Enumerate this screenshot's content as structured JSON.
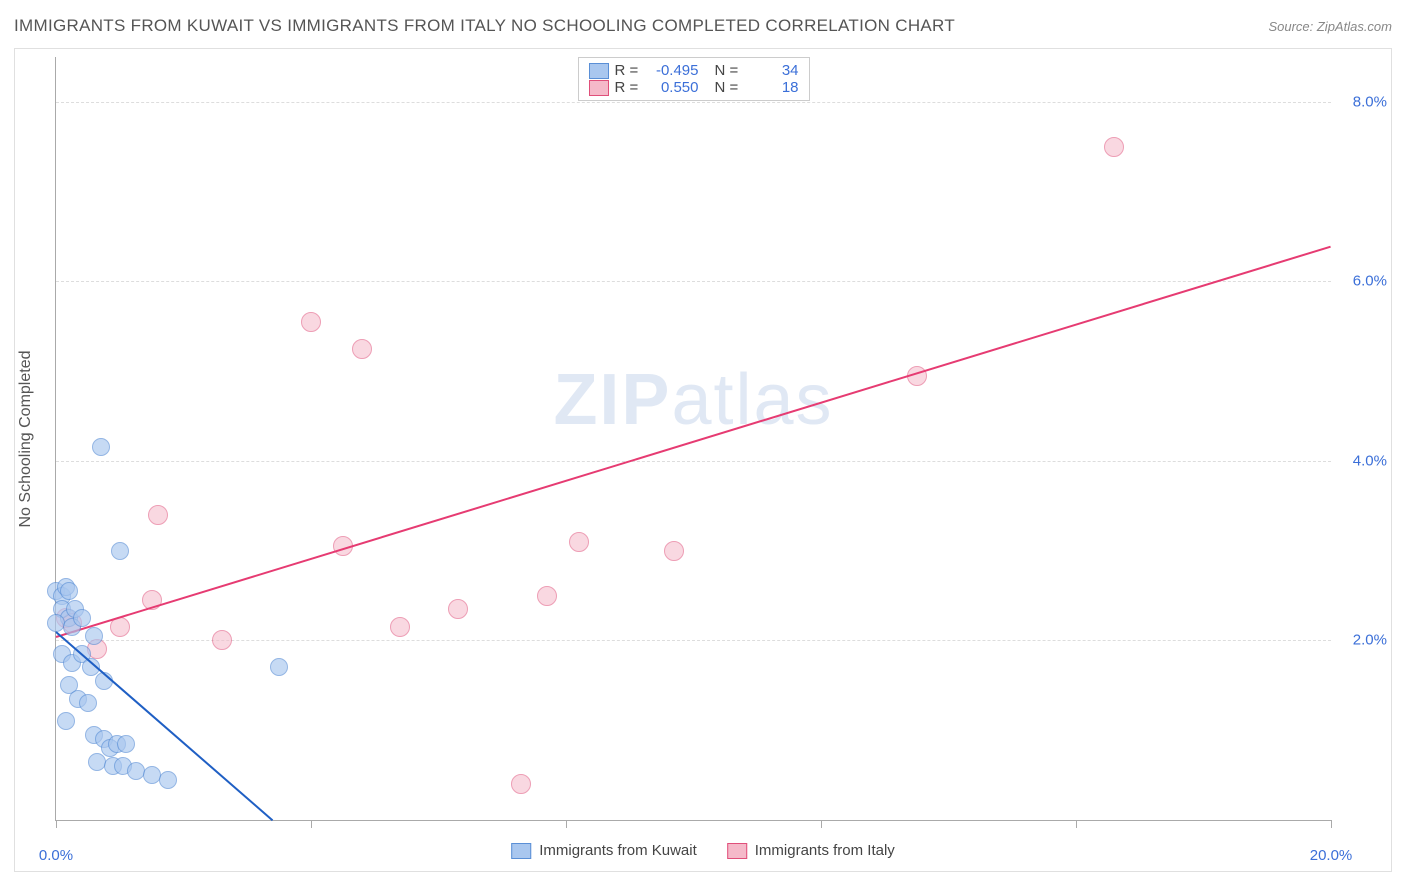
{
  "title": "IMMIGRANTS FROM KUWAIT VS IMMIGRANTS FROM ITALY NO SCHOOLING COMPLETED CORRELATION CHART",
  "source_prefix": "Source: ",
  "source_name": "ZipAtlas.com",
  "y_axis_label": "No Schooling Completed",
  "watermark_a": "ZIP",
  "watermark_b": "atlas",
  "chart": {
    "type": "scatter",
    "xlim": [
      0,
      20
    ],
    "ylim": [
      0,
      8.5
    ],
    "x_ticks": [
      0,
      4,
      8,
      12,
      16,
      20
    ],
    "x_tick_labels": {
      "0": "0.0%",
      "20": "20.0%"
    },
    "y_ticks": [
      2,
      4,
      6,
      8
    ],
    "y_tick_labels": {
      "2": "2.0%",
      "4": "4.0%",
      "6": "6.0%",
      "8": "8.0%"
    },
    "grid_color": "#dddddd",
    "axis_color": "#aaaaaa",
    "background_color": "#ffffff",
    "tick_label_color": "#3b6fd8",
    "axis_label_color": "#555555",
    "title_color": "#555555",
    "title_fontsize": 17,
    "label_fontsize": 16,
    "tick_fontsize": 15
  },
  "series": {
    "kuwait": {
      "label": "Immigrants from Kuwait",
      "fill": "#a9c7ef",
      "stroke": "#5a8fd6",
      "fill_opacity": 0.65,
      "marker_radius": 9,
      "trend_color": "#1f5fc4",
      "trend_width": 2,
      "R": "-0.495",
      "N": "34",
      "trend": {
        "x1": 0,
        "y1": 2.1,
        "x2": 3.4,
        "y2": 0
      },
      "points": [
        [
          0.0,
          2.55
        ],
        [
          0.1,
          2.5
        ],
        [
          0.15,
          2.6
        ],
        [
          0.2,
          2.55
        ],
        [
          0.1,
          2.35
        ],
        [
          0.2,
          2.25
        ],
        [
          0.3,
          2.35
        ],
        [
          0.0,
          2.2
        ],
        [
          0.25,
          2.15
        ],
        [
          0.4,
          2.25
        ],
        [
          0.6,
          2.05
        ],
        [
          0.1,
          1.85
        ],
        [
          0.25,
          1.75
        ],
        [
          0.4,
          1.85
        ],
        [
          0.55,
          1.7
        ],
        [
          0.75,
          1.55
        ],
        [
          0.2,
          1.5
        ],
        [
          0.35,
          1.35
        ],
        [
          0.5,
          1.3
        ],
        [
          0.15,
          1.1
        ],
        [
          0.6,
          0.95
        ],
        [
          0.75,
          0.9
        ],
        [
          0.85,
          0.8
        ],
        [
          0.95,
          0.85
        ],
        [
          1.1,
          0.85
        ],
        [
          0.65,
          0.65
        ],
        [
          0.9,
          0.6
        ],
        [
          1.05,
          0.6
        ],
        [
          1.25,
          0.55
        ],
        [
          1.5,
          0.5
        ],
        [
          1.75,
          0.45
        ],
        [
          0.7,
          4.15
        ],
        [
          1.0,
          3.0
        ],
        [
          3.5,
          1.7
        ]
      ]
    },
    "italy": {
      "label": "Immigrants from Italy",
      "fill": "#f5b9c9",
      "stroke": "#e04f7a",
      "fill_opacity": 0.55,
      "marker_radius": 10,
      "trend_color": "#e63b72",
      "trend_width": 2,
      "R": "0.550",
      "N": "18",
      "trend": {
        "x1": 0,
        "y1": 2.05,
        "x2": 20,
        "y2": 6.4
      },
      "points": [
        [
          0.15,
          2.25
        ],
        [
          0.65,
          1.9
        ],
        [
          1.0,
          2.15
        ],
        [
          1.5,
          2.45
        ],
        [
          1.6,
          3.4
        ],
        [
          2.6,
          2.0
        ],
        [
          4.0,
          5.55
        ],
        [
          4.5,
          3.05
        ],
        [
          4.8,
          5.25
        ],
        [
          5.4,
          2.15
        ],
        [
          6.3,
          2.35
        ],
        [
          7.7,
          2.5
        ],
        [
          8.2,
          3.1
        ],
        [
          9.7,
          3.0
        ],
        [
          7.3,
          0.4
        ],
        [
          13.5,
          4.95
        ],
        [
          16.6,
          7.5
        ],
        [
          0.25,
          2.2
        ]
      ]
    }
  },
  "legend_top": {
    "R_label": "R =",
    "N_label": "N ="
  }
}
